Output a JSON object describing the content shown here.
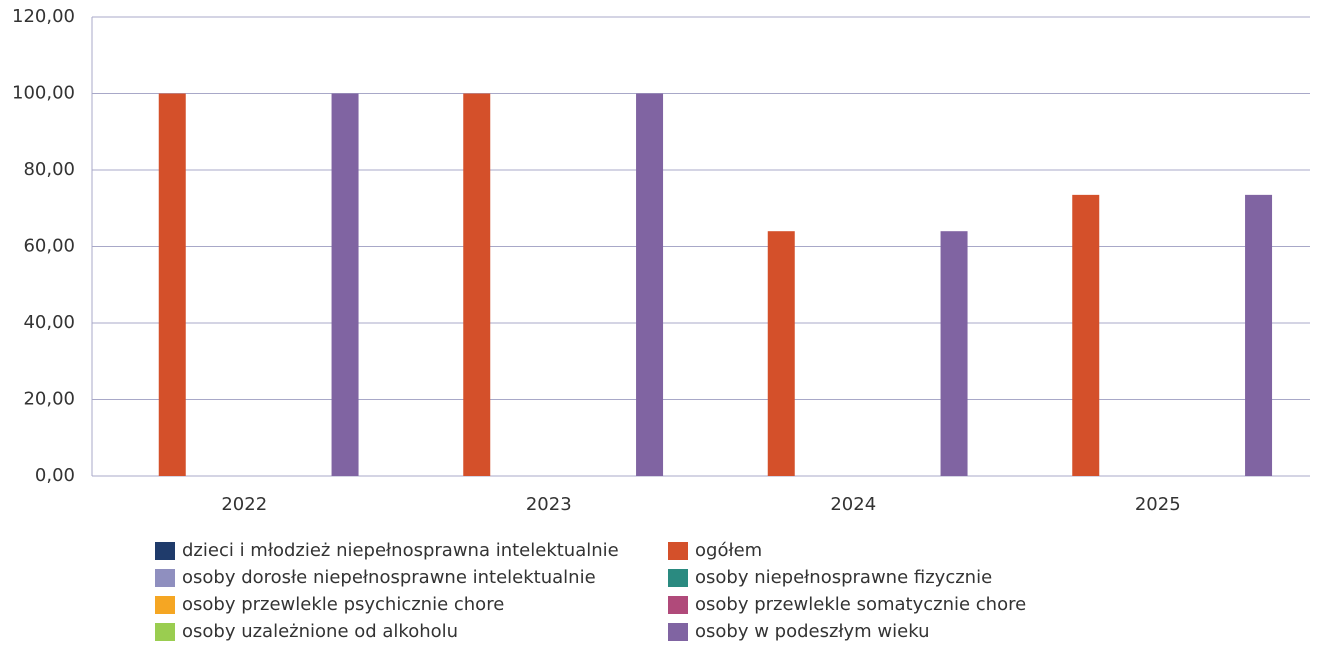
{
  "chart_data": {
    "type": "bar",
    "categories": [
      "2022",
      "2023",
      "2024",
      "2025"
    ],
    "series": [
      {
        "name": "dzieci i młodzież niepełnosprawna intelektualnie",
        "color": "#1f3b6b",
        "values": [
          0,
          0,
          0,
          0
        ]
      },
      {
        "name": "ogółem",
        "color": "#d4502a",
        "values": [
          100,
          100,
          64,
          73.5
        ]
      },
      {
        "name": "osoby dorosłe niepełnosprawne intelektualnie",
        "color": "#8f8fbf",
        "values": [
          0,
          0,
          0,
          0
        ]
      },
      {
        "name": "osoby niepełnosprawne fizycznie",
        "color": "#2a8a80",
        "values": [
          0,
          0,
          0,
          0
        ]
      },
      {
        "name": "osoby przewlekle psychicznie chore",
        "color": "#f5a623",
        "values": [
          0,
          0,
          0,
          0
        ]
      },
      {
        "name": "osoby przewlekle somatycznie chore",
        "color": "#b04a7a",
        "values": [
          0,
          0,
          0,
          0
        ]
      },
      {
        "name": "osoby uzależnione od alkoholu",
        "color": "#9acd50",
        "values": [
          0,
          0,
          0,
          0
        ]
      },
      {
        "name": "osoby w podeszłym wieku",
        "color": "#8064a2",
        "values": [
          100,
          100,
          64,
          73.5
        ]
      }
    ],
    "ylim": [
      0,
      120
    ],
    "yticks": [
      {
        "value": 0,
        "label": "0,00"
      },
      {
        "value": 20,
        "label": "20,00"
      },
      {
        "value": 40,
        "label": "40,00"
      },
      {
        "value": 60,
        "label": "60,00"
      },
      {
        "value": 80,
        "label": "80,00"
      },
      {
        "value": 100,
        "label": "100,00"
      },
      {
        "value": 120,
        "label": "120,00"
      }
    ],
    "grid": true,
    "legend": "bottom"
  }
}
